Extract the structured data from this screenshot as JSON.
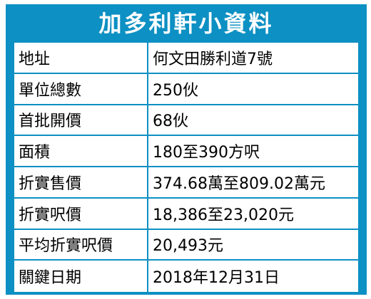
{
  "title": "加多利軒小資料",
  "colors": {
    "accent": "#0d90c3",
    "background": "#ffffff",
    "text": "#000000"
  },
  "rows": [
    {
      "label": "地址",
      "value": "何文田勝利道7號"
    },
    {
      "label": "單位總數",
      "value": "250伙"
    },
    {
      "label": "首批開價",
      "value": "68伙"
    },
    {
      "label": "面積",
      "value": "180至390方呎"
    },
    {
      "label": "折實售價",
      "value": "374.68萬至809.02萬元"
    },
    {
      "label": "折實呎價",
      "value": "18,386至23,020元"
    },
    {
      "label": "平均折實呎價",
      "value": "20,493元"
    },
    {
      "label": "關鍵日期",
      "value": "2018年12月31日"
    }
  ]
}
